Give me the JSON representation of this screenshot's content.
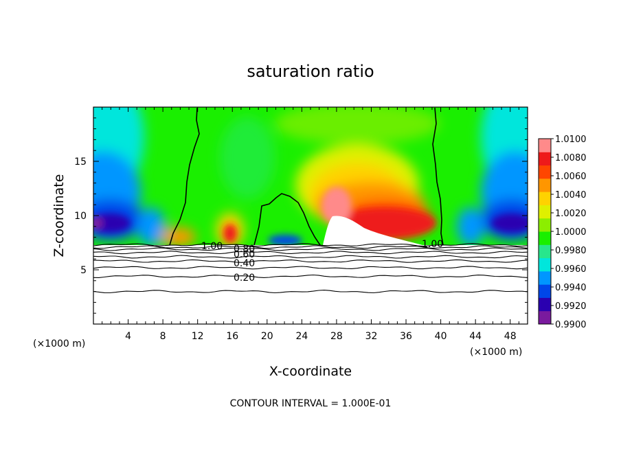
{
  "chart_data": {
    "type": "heatmap",
    "title": "saturation ratio",
    "xlabel": "X-coordinate",
    "ylabel": "Z-coordinate",
    "x_unit": "(×1000 m)",
    "xlim": [
      0,
      50
    ],
    "ylim": [
      0,
      20
    ],
    "x_ticks": [
      "4",
      "8",
      "12",
      "16",
      "20",
      "24",
      "28",
      "32",
      "36",
      "40",
      "44",
      "48"
    ],
    "y_ticks": [
      "5",
      "10",
      "15"
    ],
    "colorbar": {
      "min": 0.99,
      "max": 1.01,
      "labels": [
        "1.0100",
        "1.0080",
        "1.0060",
        "1.0040",
        "1.0020",
        "1.0000",
        "0.9980",
        "0.9960",
        "0.9940",
        "0.9920",
        "0.9900"
      ],
      "colors": [
        "#7a1a9e",
        "#2a00b0",
        "#0046e8",
        "#0096ff",
        "#00e6dc",
        "#28e68c",
        "#1aef00",
        "#8cee00",
        "#dff000",
        "#ffd200",
        "#ff9600",
        "#ff4600",
        "#ee1a1a",
        "#ff8a8a"
      ]
    },
    "contour_labels": [
      "1.00",
      "0.80",
      "0.60",
      "0.40",
      "0.20",
      "1.00"
    ],
    "contour_levels_z": [
      3.0,
      4.4,
      5.2,
      5.8,
      6.2,
      6.6,
      6.9,
      7.1,
      7.3
    ],
    "contour_interval_text": "CONTOUR INTERVAL = 1.000E-01"
  }
}
